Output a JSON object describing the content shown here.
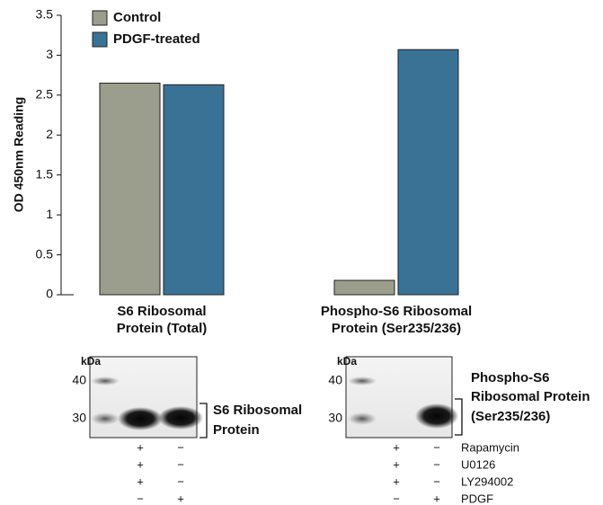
{
  "chart_data": {
    "type": "bar",
    "categories": [
      "S6 Ribosomal Protein (Total)",
      "Phospho-S6 Ribosomal Protein (Ser235/236)"
    ],
    "series": [
      {
        "name": "Control",
        "color": "#9b9e8c",
        "values": [
          2.65,
          0.18
        ]
      },
      {
        "name": "PDGF-treated",
        "color": "#3a7296",
        "values": [
          2.63,
          3.07
        ]
      }
    ],
    "ylabel": "OD 450nm Reading",
    "ylim": [
      0,
      3.5
    ],
    "yticks": [
      0,
      0.5,
      1,
      1.5,
      2,
      2.5,
      3,
      3.5
    ],
    "legend": "top-left"
  },
  "blots": [
    {
      "kda": "kDa",
      "markers": [
        "40",
        "30"
      ],
      "label": [
        "S6 Ribosomal",
        "Protein"
      ]
    },
    {
      "kda": "kDa",
      "markers": [
        "40",
        "30"
      ],
      "label": [
        "Phospho-S6",
        "Ribosomal Protein",
        "(Ser235/236)"
      ]
    }
  ],
  "treatments": {
    "labels": [
      "Rapamycin",
      "U0126",
      "LY294002",
      "PDGF"
    ],
    "signs": [
      [
        "+",
        "−"
      ],
      [
        "+",
        "−"
      ],
      [
        "+",
        "−"
      ],
      [
        "−",
        "+"
      ]
    ]
  }
}
